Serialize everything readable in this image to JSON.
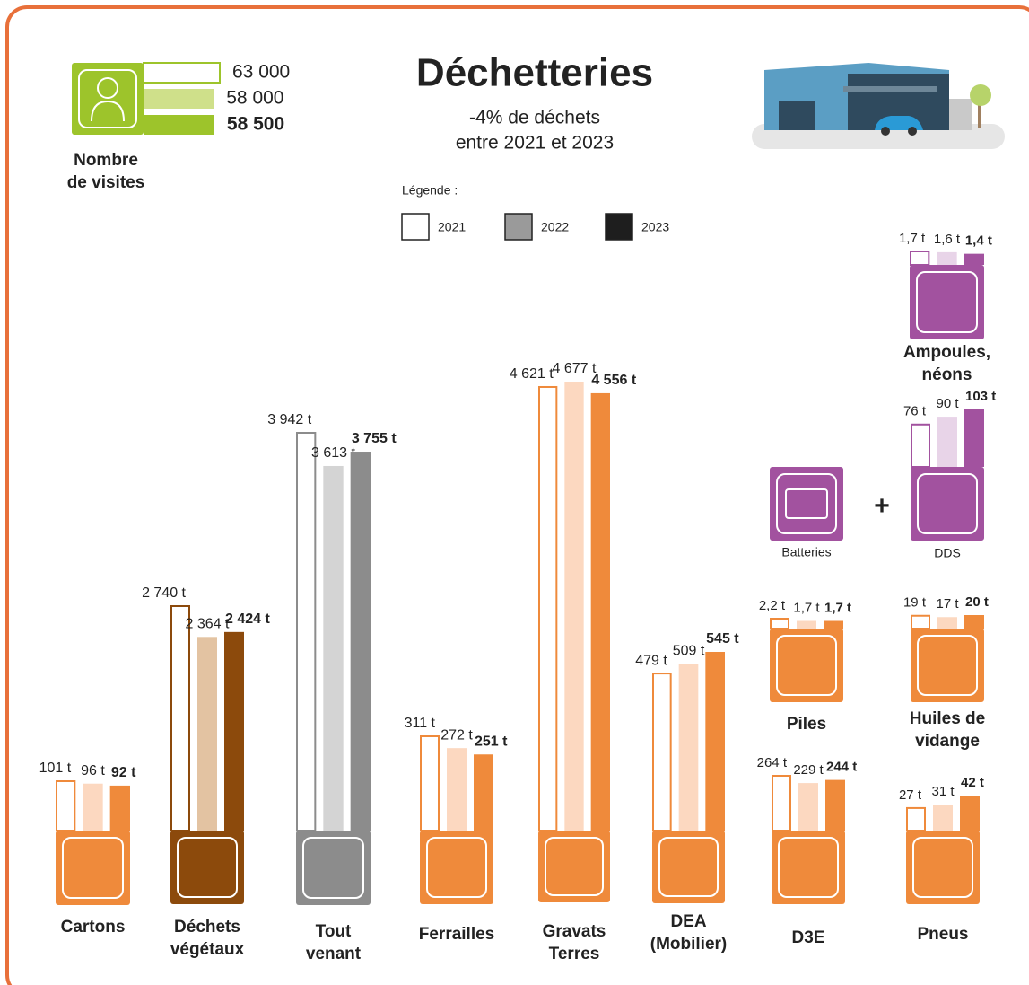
{
  "chart_data": {
    "type": "bar",
    "title": "Déchetteries",
    "subtitle": [
      "-4% de déchets",
      "entre 2021 et 2023"
    ],
    "visits": {
      "label": [
        "Nombre",
        "de visites"
      ],
      "values": [
        63000,
        58000,
        58500
      ],
      "value_labels": [
        "63 000",
        "58 000",
        "58 500"
      ],
      "color": "#9dc42b",
      "light_color": "#cfe08a"
    },
    "legend": {
      "title": "Légende :",
      "years": [
        "2021",
        "2022",
        "2023"
      ],
      "colors": [
        "#ffffff",
        "#9a9a9a",
        "#1e1e1e"
      ]
    },
    "batteries_label": "Batteries",
    "groups": [
      {
        "name": [
          "Cartons"
        ],
        "values": [
          101,
          96,
          92
        ],
        "value_labels": [
          "101 t",
          "96 t",
          "92 t"
        ],
        "color": "#ef8a3b",
        "light_color": "#fcd8c0"
      },
      {
        "name": [
          "Déchets",
          "végétaux"
        ],
        "values": [
          2740,
          2364,
          2424
        ],
        "value_labels": [
          "2 740 t",
          "2 364 t",
          "2 424 t"
        ],
        "color": "#8c4a0c",
        "light_color": "#e3c3a2"
      },
      {
        "name": [
          "Tout",
          "venant"
        ],
        "values": [
          3942,
          3613,
          3755
        ],
        "value_labels": [
          "3 942 t",
          "3 613 t",
          "3 755 t"
        ],
        "color": "#8c8c8c",
        "light_color": "#d4d4d4"
      },
      {
        "name": [
          "Ferrailles"
        ],
        "values": [
          311,
          272,
          251
        ],
        "value_labels": [
          "311 t",
          "272 t",
          "251 t"
        ],
        "color": "#ef8a3b",
        "light_color": "#fcd8c0"
      },
      {
        "name": [
          "Gravats",
          "Terres"
        ],
        "values": [
          4621,
          4677,
          4556
        ],
        "value_labels": [
          "4 621 t",
          "4 677 t",
          "4 556 t"
        ],
        "color": "#ef8a3b",
        "light_color": "#fcd8c0"
      },
      {
        "name": [
          "DEA",
          "(Mobilier)"
        ],
        "values": [
          479,
          509,
          545
        ],
        "value_labels": [
          "479 t",
          "509 t",
          "545 t"
        ],
        "color": "#ef8a3b",
        "light_color": "#fcd8c0"
      },
      {
        "name": [
          "D3E"
        ],
        "values": [
          264,
          229,
          244
        ],
        "value_labels": [
          "264 t",
          "229 t",
          "244 t"
        ],
        "color": "#ef8a3b",
        "light_color": "#fcd8c0"
      },
      {
        "name": [
          "Pneus"
        ],
        "values": [
          27,
          31,
          42
        ],
        "value_labels": [
          "27 t",
          "31 t",
          "42 t"
        ],
        "color": "#ef8a3b",
        "light_color": "#fcd8c0"
      },
      {
        "name": [
          "Piles"
        ],
        "values": [
          2.2,
          1.7,
          1.7
        ],
        "value_labels": [
          "2,2 t",
          "1,7 t",
          "1,7 t"
        ],
        "color": "#ef8a3b",
        "light_color": "#fcd8c0"
      },
      {
        "name": [
          "Huiles de",
          "vidange"
        ],
        "values": [
          19,
          17,
          20
        ],
        "value_labels": [
          "19 t",
          "17 t",
          "20 t"
        ],
        "color": "#ef8a3b",
        "light_color": "#fcd8c0"
      },
      {
        "name": [
          "DDS"
        ],
        "values": [
          76,
          90,
          103
        ],
        "value_labels": [
          "76 t",
          "90 t",
          "103 t"
        ],
        "color": "#a2529f",
        "light_color": "#e8d4e8"
      },
      {
        "name": [
          "Ampoules,",
          "néons"
        ],
        "values": [
          1.7,
          1.6,
          1.4
        ],
        "value_labels": [
          "1,7 t",
          "1,6 t",
          "1,4 t"
        ],
        "color": "#a2529f",
        "light_color": "#e8d4e8"
      }
    ]
  }
}
